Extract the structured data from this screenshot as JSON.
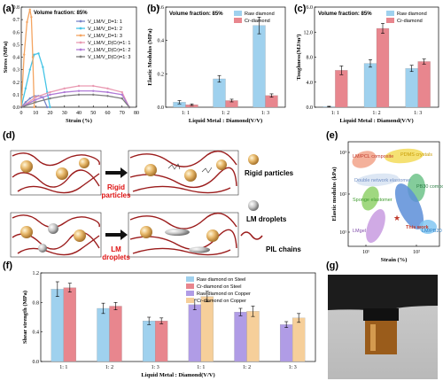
{
  "colors": {
    "raw": "#9fd1ee",
    "cr": "#e8868e",
    "raw_copper": "#b09ce6",
    "cr_copper": "#f6cf9a",
    "pil": "#9b1c1c"
  },
  "panels": {
    "a": "(a)",
    "b": "(b)",
    "c": "(c)",
    "d": "(d)",
    "e": "(e)",
    "f": "(f)",
    "g": "(g)"
  },
  "schematic": {
    "rigid_label_1": "Rigid",
    "rigid_label_2": "particles",
    "lm_label_1": "LM",
    "lm_label_2": "droplets",
    "legend_rigid": "Rigid particles",
    "legend_lm": "LM droplets",
    "legend_pil": "PIL chains"
  },
  "chart_data": [
    {
      "id": "a",
      "type": "line",
      "note": "Volume fraction: 85%",
      "xlabel": "Strain (%)",
      "ylabel": "Stress (MPa)",
      "xlim": [
        0,
        80
      ],
      "ylim": [
        0,
        0.8
      ],
      "xticks": [
        "0",
        "10",
        "20",
        "30",
        "40",
        "50",
        "60",
        "70",
        "80"
      ],
      "yticks": [
        "0.0",
        "0.1",
        "0.2",
        "0.3",
        "0.4",
        "0.5",
        "0.6",
        "0.7",
        "0.8"
      ],
      "series": [
        {
          "name": "V_LM/V_D=1: 1",
          "color": "#7a86c9",
          "x": [
            0,
            3,
            6,
            9,
            12,
            15,
            18
          ],
          "y": [
            0,
            0.04,
            0.07,
            0.09,
            0.09,
            0.08,
            0.0
          ]
        },
        {
          "name": "V_LM/V_D=1: 2",
          "color": "#45c4e6",
          "x": [
            0,
            3,
            6,
            9,
            12,
            15,
            18,
            20
          ],
          "y": [
            0,
            0.15,
            0.3,
            0.42,
            0.43,
            0.32,
            0.12,
            0.0
          ]
        },
        {
          "name": "V_LM/V_D=1: 3",
          "color": "#f4a460",
          "x": [
            0,
            2,
            4,
            6,
            7,
            8,
            9
          ],
          "y": [
            0,
            0.42,
            0.68,
            0.78,
            0.72,
            0.4,
            0.0
          ]
        },
        {
          "name": "V_LM/V_D(Cr)=1: 1",
          "color": "#e99ab2",
          "x": [
            0,
            10,
            20,
            30,
            40,
            50,
            60,
            70,
            75
          ],
          "y": [
            0,
            0.08,
            0.12,
            0.15,
            0.17,
            0.17,
            0.15,
            0.12,
            0.0
          ]
        },
        {
          "name": "V_LM/V_D(Cr)=1: 2",
          "color": "#b07ad6",
          "x": [
            0,
            10,
            20,
            30,
            40,
            50,
            60,
            70,
            75
          ],
          "y": [
            0,
            0.06,
            0.1,
            0.12,
            0.13,
            0.13,
            0.12,
            0.1,
            0.0
          ]
        },
        {
          "name": "V_LM/V_D(Cr)=1: 3",
          "color": "#7d7d7d",
          "x": [
            0,
            10,
            20,
            30,
            40,
            50,
            60,
            70,
            75
          ],
          "y": [
            0,
            0.04,
            0.07,
            0.09,
            0.1,
            0.1,
            0.09,
            0.07,
            0.0
          ]
        }
      ]
    },
    {
      "id": "b",
      "type": "bar",
      "note": "Volume fraction: 85%",
      "xlabel": "Liquid Metal : Diamond(V/V)",
      "ylabel": "Elastic Modulus (MPa)",
      "ylim": [
        0,
        0.6
      ],
      "yticks": [
        "0.0",
        "0.2",
        "0.4",
        "0.6"
      ],
      "categories": [
        "1: 1",
        "1: 2",
        "1: 3"
      ],
      "series": [
        {
          "name": "Raw diamond",
          "values": [
            0.03,
            0.17,
            0.49
          ],
          "errors": [
            0.01,
            0.02,
            0.05
          ]
        },
        {
          "name": "Cr-diamond",
          "values": [
            0.015,
            0.04,
            0.07
          ],
          "errors": [
            0.005,
            0.008,
            0.01
          ]
        }
      ]
    },
    {
      "id": "c",
      "type": "bar",
      "note": "Volume fraction: 85%",
      "xlabel": "Liquid Metal : Diamond(V/V)",
      "ylabel": "Toughness(MJ/m³)",
      "ylim": [
        0,
        16
      ],
      "yticks": [
        "0.0",
        "4.0",
        "8.0",
        "12.0",
        "16.0"
      ],
      "categories": [
        "1: 1",
        "1: 2",
        "1: 3"
      ],
      "series": [
        {
          "name": "Raw diamond",
          "values": [
            0.1,
            7.0,
            6.2
          ],
          "errors": [
            0.05,
            0.6,
            0.5
          ]
        },
        {
          "name": "Cr-diamond",
          "values": [
            5.9,
            12.6,
            7.3
          ],
          "errors": [
            0.7,
            0.8,
            0.4
          ]
        }
      ]
    },
    {
      "id": "e",
      "type": "scatter",
      "xlabel": "Strain (%)",
      "ylabel": "Elastic modulus (kPa)",
      "xticks": [
        "10¹",
        "10²"
      ],
      "yticks": [
        "10¹",
        "10²",
        "10³"
      ],
      "regions": [
        "LM/PCL composite",
        "PDMS crystals",
        "Double network elastomer",
        "Sponge elastomer",
        "PB30 composite",
        "LMgel",
        "This work",
        "LM/PB20"
      ],
      "point": "This work"
    },
    {
      "id": "f",
      "type": "bar",
      "xlabel": "Liquid Metal : Diamond(V/V)",
      "ylabel": "Shear strength (MPa)",
      "ylim": [
        0,
        1.2
      ],
      "yticks": [
        "0.0",
        "0.4",
        "0.8",
        "1.2"
      ],
      "categories": [
        "1: 1",
        "1: 2",
        "1: 3",
        "1: 1",
        "1: 2",
        "1: 3"
      ],
      "series": [
        {
          "name": "Raw diamond on Steel",
          "values": [
            0.98,
            0.72,
            0.55,
            null,
            null,
            null
          ],
          "errors": [
            0.1,
            0.07,
            0.05,
            null,
            null,
            null
          ]
        },
        {
          "name": "Cr-diamond on Steel",
          "values": [
            1.0,
            0.75,
            0.55,
            null,
            null,
            null
          ],
          "errors": [
            0.06,
            0.05,
            0.04,
            null,
            null,
            null
          ]
        },
        {
          "name": "Raw diamond on Copper",
          "values": [
            null,
            null,
            null,
            0.77,
            0.67,
            0.5
          ],
          "errors": [
            null,
            null,
            null,
            0.07,
            0.05,
            0.04
          ]
        },
        {
          "name": "Cr-diamond on Copper",
          "values": [
            null,
            null,
            null,
            0.88,
            0.68,
            0.59
          ],
          "errors": [
            null,
            null,
            null,
            0.07,
            0.07,
            0.06
          ]
        }
      ]
    }
  ]
}
